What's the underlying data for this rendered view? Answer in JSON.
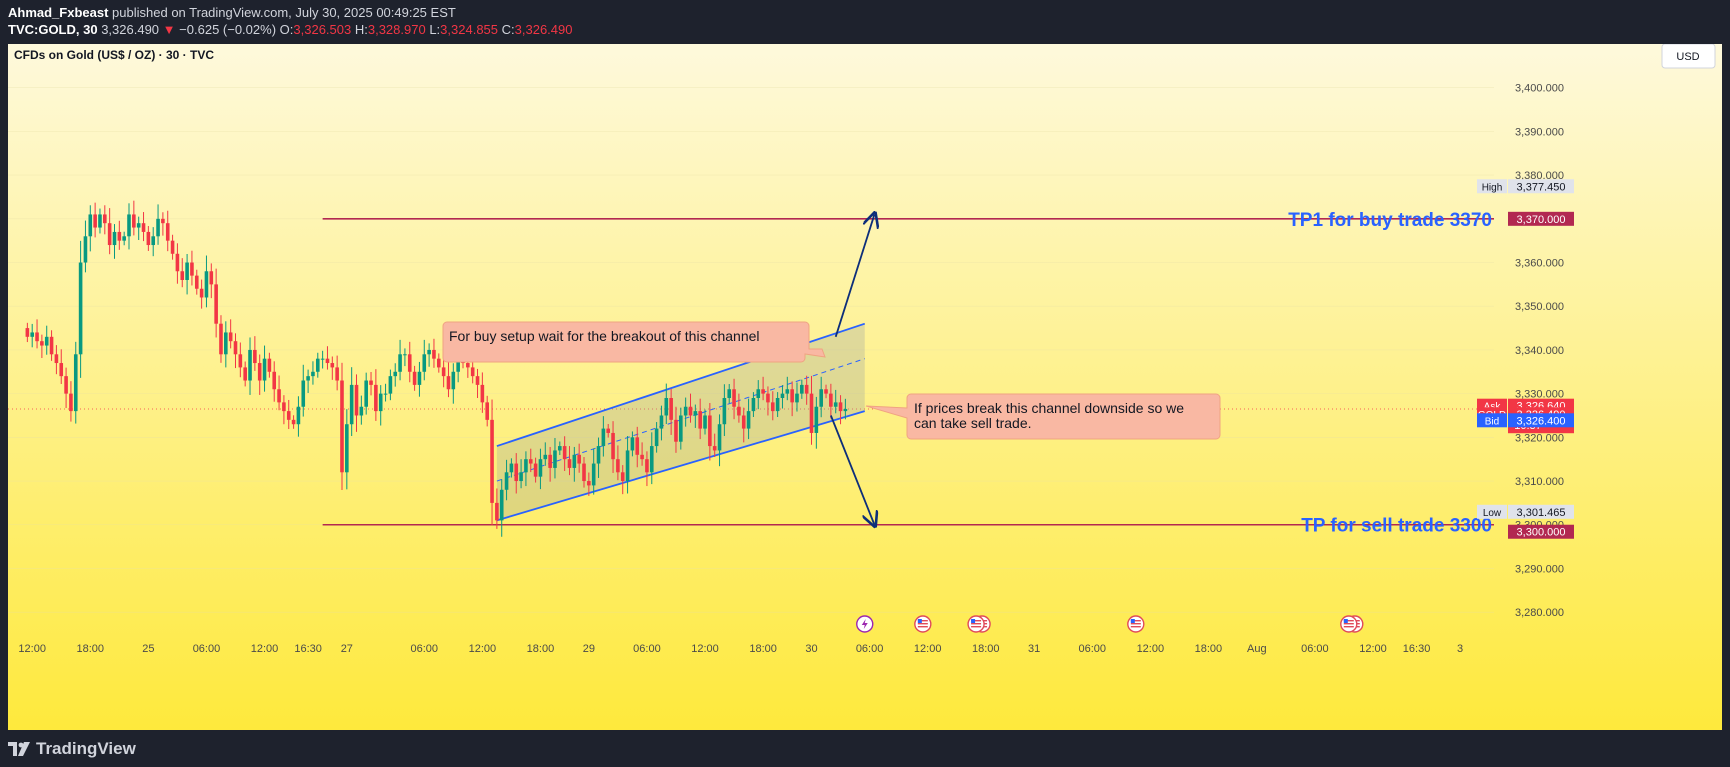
{
  "header": {
    "author": "Ahmad_Fxbeast",
    "published": "published on TradingView.com, July 30, 2025 00:49:25 EST",
    "symbol": "TVC:GOLD, 30",
    "last": "3,326.490",
    "change": "−0.625 (−0.02%)",
    "o_label": "O:",
    "o": "3,326.503",
    "h_label": "H:",
    "h": "3,328.970",
    "l_label": "L:",
    "l": "3,324.855",
    "c_label": "C:",
    "c": "3,326.490"
  },
  "footer": {
    "brand": "TradingView"
  },
  "colors": {
    "up": "#089981",
    "down": "#f23645",
    "bg_top": "#fef9dc",
    "bg_bottom": "#fee93c",
    "channel": "#2962ff",
    "tp_line": "#b22851",
    "callout": "#f9b8a3",
    "label_text": "#2962ff"
  },
  "chart_data": {
    "type": "candlestick",
    "title": "CFDs on Gold (US$ / OZ) · 30 · TVC",
    "currency": "USD",
    "ylim": [
      3275,
      3410
    ],
    "y_ticks": [
      3280,
      3290,
      3300,
      3310,
      3320,
      3330,
      3340,
      3350,
      3360,
      3370,
      3380,
      3390,
      3400
    ],
    "y_tick_labels": [
      "3,280.000",
      "3,290.000",
      "3,300.000",
      "3,310.000",
      "3,320.000",
      "3,330.000",
      "3,340.000",
      "3,350.000",
      "3,360.000",
      "3,370.000",
      "3,380.000",
      "3,390.000",
      "3,400.000"
    ],
    "x_time_labels": [
      {
        "t": 1,
        "label": "12:00"
      },
      {
        "t": 13,
        "label": "18:00"
      },
      {
        "t": 25,
        "label": "25"
      },
      {
        "t": 37,
        "label": "06:00"
      },
      {
        "t": 49,
        "label": "12:00"
      },
      {
        "t": 58,
        "label": "16:30"
      },
      {
        "t": 66,
        "label": "27"
      },
      {
        "t": 82,
        "label": "06:00"
      },
      {
        "t": 94,
        "label": "12:00"
      },
      {
        "t": 106,
        "label": "18:00"
      },
      {
        "t": 116,
        "label": "29"
      },
      {
        "t": 128,
        "label": "06:00"
      },
      {
        "t": 140,
        "label": "12:00"
      },
      {
        "t": 152,
        "label": "18:00"
      },
      {
        "t": 162,
        "label": "30"
      },
      {
        "t": 174,
        "label": "06:00"
      },
      {
        "t": 186,
        "label": "12:00"
      },
      {
        "t": 198,
        "label": "18:00"
      },
      {
        "t": 208,
        "label": "31"
      },
      {
        "t": 220,
        "label": "06:00"
      },
      {
        "t": 232,
        "label": "12:00"
      },
      {
        "t": 244,
        "label": "18:00"
      },
      {
        "t": 254,
        "label": "Aug"
      },
      {
        "t": 266,
        "label": "06:00"
      },
      {
        "t": 278,
        "label": "12:00"
      },
      {
        "t": 287,
        "label": "16:30"
      },
      {
        "t": 296,
        "label": "3"
      }
    ],
    "x_range": [
      -4,
      303
    ],
    "closes": [
      3343,
      3344,
      3342,
      3341,
      3343,
      3339,
      3337,
      3334,
      3330,
      3326,
      3339,
      3360,
      3366,
      3371,
      3368,
      3371,
      3369,
      3364,
      3367,
      3365,
      3366,
      3371,
      3368,
      3369,
      3367,
      3364,
      3366,
      3370,
      3369,
      3365,
      3362,
      3358,
      3356,
      3360,
      3357,
      3354,
      3352,
      3358,
      3355,
      3346,
      3339,
      3344,
      3342,
      3339,
      3336,
      3333,
      3340,
      3337,
      3333,
      3338,
      3335,
      3331,
      3328,
      3326,
      3324,
      3323,
      3327,
      3333,
      3334,
      3335,
      3338,
      3338,
      3337,
      3336,
      3333,
      3312,
      3323,
      3332,
      3325,
      3327,
      3333,
      3332,
      3326,
      3330,
      3330,
      3334,
      3335,
      3339,
      3339,
      3335,
      3332,
      3335,
      3339,
      3340,
      3338,
      3336,
      3334,
      3331,
      3335,
      3339,
      3337,
      3336,
      3334,
      3332,
      3328,
      3324,
      3305,
      3301,
      3308,
      3312,
      3314,
      3310,
      3312,
      3315,
      3314,
      3311,
      3315,
      3316,
      3313,
      3317,
      3318,
      3315,
      3313,
      3316,
      3314,
      3310,
      3309,
      3314,
      3318,
      3322,
      3321,
      3315,
      3312,
      3310,
      3317,
      3320,
      3316,
      3315,
      3312,
      3318,
      3322,
      3325,
      3329,
      3324,
      3319,
      3325,
      3327,
      3325,
      3326,
      3322,
      3325,
      3318,
      3317,
      3323,
      3329,
      3331,
      3327,
      3325,
      3322,
      3326,
      3329,
      3331,
      3330,
      3328,
      3326,
      3329,
      3330,
      3331,
      3328,
      3330,
      3332,
      3330,
      3321,
      3327,
      3331,
      3330,
      3327,
      3328,
      3326,
      3326.49
    ],
    "open_first": 3345,
    "stats": {
      "high": 3377.45,
      "low": 3301.465,
      "ask": 3326.64,
      "bid": 3326.4,
      "last": 3326.49,
      "crosshair": 3327.115
    },
    "price_labels": {
      "high_tag": "High",
      "high_val": "3,377.450",
      "tp1_val": "3,370.000",
      "crosshair_val": "3,327.115",
      "ask_tag": "Ask",
      "ask_val": "3,326.640",
      "gold_tag": "GOLD",
      "last_val": "3,326.490",
      "countdown": "10:37",
      "bid_tag": "Bid",
      "bid_val": "3,326.400",
      "low_tag": "Low",
      "low_val": "3,301.465",
      "tp_sell_val": "3,300.000"
    },
    "levels": [
      {
        "name": "tp1",
        "price": 3370,
        "t_from": 61,
        "label": "TP1 for buy trade 3370"
      },
      {
        "name": "tp-sell",
        "price": 3300,
        "t_from": 61,
        "label": "TP for sell trade 3300"
      }
    ],
    "channel": {
      "lower": [
        [
          97,
          3301
        ],
        [
          173,
          3326
        ]
      ],
      "upper": [
        [
          97,
          3318
        ],
        [
          173,
          3346
        ]
      ],
      "mid": [
        [
          97,
          3310
        ],
        [
          173,
          3338
        ]
      ]
    },
    "arrows": [
      {
        "from": [
          167,
          3343
        ],
        "to": [
          175,
          3371
        ]
      },
      {
        "from": [
          166,
          3325
        ],
        "to": [
          175,
          3300
        ]
      }
    ],
    "callouts": [
      {
        "name": "buy-setup",
        "text": "For buy setup wait for the breakout of this channel"
      },
      {
        "name": "sell-setup",
        "text_line1": "If prices break this channel downside so we",
        "text_line2": "can take sell trade."
      }
    ],
    "events": [
      {
        "t": 173,
        "kind": "bolt"
      },
      {
        "t": 185,
        "kind": "flag"
      },
      {
        "t": 196,
        "kind": "flag2"
      },
      {
        "t": 229,
        "kind": "flag"
      },
      {
        "t": 273,
        "kind": "flag2"
      }
    ]
  }
}
